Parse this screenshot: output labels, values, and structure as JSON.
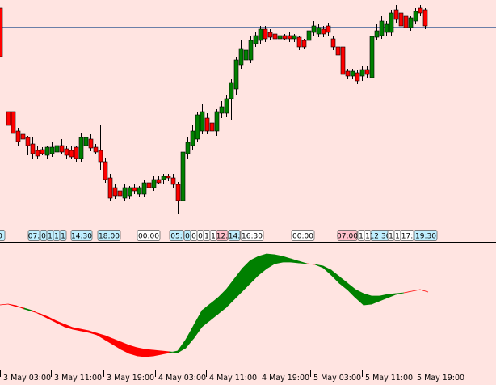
{
  "colors": {
    "background": "#ffe4e1",
    "bull": "#008000",
    "bear": "#ff0000",
    "wick": "#000000",
    "price_line": "#6b7fa8",
    "separator": "#000000",
    "zero_line": "#808080",
    "tag_default_bg": "#ffffff",
    "tag_cyan_bg": "#bfefff",
    "tag_pink_bg": "#ffc0cb"
  },
  "session_tags": [
    {
      "text": "0",
      "bg": "cyan"
    },
    {
      "text": "07:",
      "bg": "cyan"
    },
    {
      "text": "0",
      "bg": "cyan"
    },
    {
      "text": "1",
      "bg": "cyan"
    },
    {
      "text": "1",
      "bg": "cyan"
    },
    {
      "text": "1",
      "bg": "cyan"
    },
    {
      "text": "14:30",
      "bg": "cyan"
    },
    {
      "text": "18:00",
      "bg": "cyan"
    },
    {
      "text": "00:00",
      "bg": "default"
    },
    {
      "text": "05:",
      "bg": "cyan"
    },
    {
      "text": "0",
      "bg": "cyan"
    },
    {
      "text": "0",
      "bg": "default"
    },
    {
      "text": "0",
      "bg": "default"
    },
    {
      "text": "1",
      "bg": "default"
    },
    {
      "text": "1",
      "bg": "default"
    },
    {
      "text": "12:",
      "bg": "pink"
    },
    {
      "text": "14:",
      "bg": "cyan"
    },
    {
      "text": "16:30",
      "bg": "default"
    },
    {
      "text": "00:00",
      "bg": "default"
    },
    {
      "text": "07:00",
      "bg": "pink"
    },
    {
      "text": "1",
      "bg": "default"
    },
    {
      "text": "1",
      "bg": "default"
    },
    {
      "text": "12:30",
      "bg": "cyan"
    },
    {
      "text": "1",
      "bg": "default"
    },
    {
      "text": "1",
      "bg": "default"
    },
    {
      "text": "17:",
      "bg": "default"
    },
    {
      "text": "19:30",
      "bg": "cyan"
    }
  ],
  "time_axis": [
    "3 May 03:00",
    "3 May 11:00",
    "3 May 19:00",
    "4 May 03:00",
    "4 May 11:00",
    "4 May 19:00",
    "5 May 03:00",
    "5 May 11:00",
    "5 May 19:00"
  ]
}
